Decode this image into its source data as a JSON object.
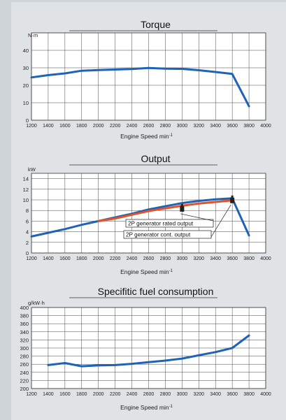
{
  "chart_data": [
    {
      "type": "line",
      "title": "Torque",
      "unit_label": "N·m",
      "xlabel": "Engine Speed min",
      "xlabel_sup": "-1",
      "xlim": [
        1200,
        4000
      ],
      "ylim": [
        0,
        50
      ],
      "xticks": [
        1200,
        1400,
        1600,
        1800,
        2000,
        2200,
        2400,
        2600,
        2800,
        3000,
        3200,
        3400,
        3600,
        3800,
        4000
      ],
      "yticks": [
        0,
        10,
        20,
        30,
        40,
        50
      ],
      "grid": true,
      "series": [
        {
          "color": "#1e63b8",
          "x": [
            1200,
            1400,
            1600,
            1800,
            2000,
            2200,
            2400,
            2600,
            2800,
            3000,
            3200,
            3400,
            3600,
            3800
          ],
          "y": [
            24.5,
            25.8,
            26.8,
            28.3,
            28.7,
            29.0,
            29.3,
            29.9,
            29.5,
            29.4,
            28.6,
            27.6,
            26.5,
            8.0
          ]
        }
      ],
      "markers": [],
      "callouts": []
    },
    {
      "type": "line",
      "title": "Output",
      "unit_label": "kW",
      "xlabel": "Engine Speed min",
      "xlabel_sup": "-1",
      "xlim": [
        1200,
        4000
      ],
      "ylim": [
        0,
        15
      ],
      "xticks": [
        1200,
        1400,
        1600,
        1800,
        2000,
        2200,
        2400,
        2600,
        2800,
        3000,
        3200,
        3400,
        3600,
        3800,
        4000
      ],
      "yticks": [
        0,
        2,
        4,
        6,
        8,
        10,
        12,
        14
      ],
      "grid": true,
      "series": [
        {
          "color": "#1e63b8",
          "x": [
            1200,
            1400,
            1600,
            1800,
            2000,
            2200,
            2400,
            2600,
            2800,
            3000,
            3200,
            3400,
            3600,
            3800
          ],
          "y": [
            3.1,
            3.8,
            4.5,
            5.3,
            6.0,
            6.7,
            7.4,
            8.2,
            8.8,
            9.4,
            9.8,
            10.1,
            10.3,
            3.3
          ]
        },
        {
          "color": "#e2522a",
          "x": [
            2000,
            2200,
            2400,
            2600,
            2800,
            3000,
            3200,
            3400,
            3600
          ],
          "y": [
            6.0,
            6.5,
            7.2,
            7.9,
            8.4,
            8.9,
            9.3,
            9.6,
            9.9
          ]
        }
      ],
      "markers": [
        {
          "x": 3000,
          "y": 8.3,
          "color": "#222222"
        },
        {
          "x": 3600,
          "y": 9.9,
          "color": "#222222"
        }
      ],
      "callouts": [
        {
          "text": "2P generator rated output",
          "x": 3000,
          "y": 7.9
        },
        {
          "text": "2P generator cont. output",
          "x": 3600,
          "y": 9.6
        }
      ]
    },
    {
      "type": "line",
      "title": "Specifitic fuel consumption",
      "unit_label": "g/kW·h",
      "xlabel": "Engine Speed min",
      "xlabel_sup": "-1",
      "xlim": [
        1200,
        4000
      ],
      "ylim": [
        200,
        400
      ],
      "xticks": [
        1200,
        1400,
        1600,
        1800,
        2000,
        2200,
        2400,
        2600,
        2800,
        3000,
        3200,
        3400,
        3600,
        3800,
        4000
      ],
      "yticks": [
        200,
        220,
        240,
        260,
        280,
        300,
        320,
        340,
        360,
        380,
        400
      ],
      "grid": true,
      "series": [
        {
          "color": "#1e63b8",
          "x": [
            1400,
            1600,
            1800,
            2000,
            2200,
            2400,
            2600,
            2800,
            3000,
            3200,
            3400,
            3600,
            3800
          ],
          "y": [
            258,
            263,
            255,
            257,
            258,
            261,
            265,
            269,
            274,
            282,
            290,
            300,
            331
          ]
        }
      ],
      "markers": [],
      "callouts": []
    }
  ]
}
